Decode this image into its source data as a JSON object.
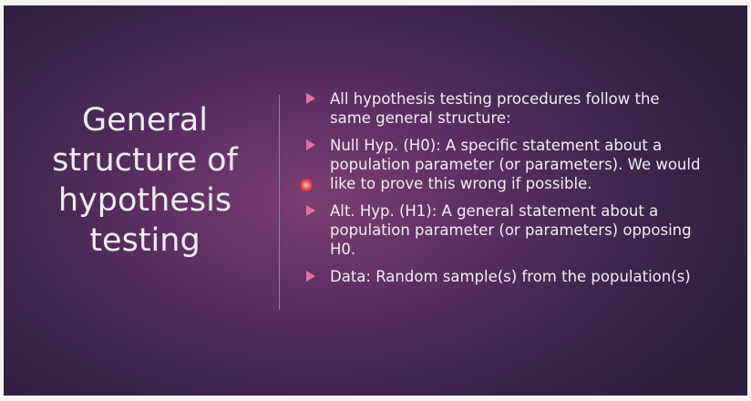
{
  "slide": {
    "title": "General structure of hypothesis testing",
    "bullets": [
      {
        "text": "All hypothesis testing procedures follow the same general structure:"
      },
      {
        "text": "Null Hyp. (H0): A specific statement about a population parameter (or parameters). We would like to prove this wrong if possible."
      },
      {
        "text": "Alt. Hyp. (H1): A general statement about a population parameter (or parameters) opposing H0."
      },
      {
        "text": "Data: Random sample(s) from the population(s)"
      }
    ],
    "colors": {
      "background": "#4f2b5c",
      "bullet_marker": "#e66fa3",
      "text": "#f1edf4",
      "divider": "#8a7fa6"
    },
    "bullet_icon": "triangle-right-icon",
    "pointer_icon": "laser-pointer-icon"
  }
}
